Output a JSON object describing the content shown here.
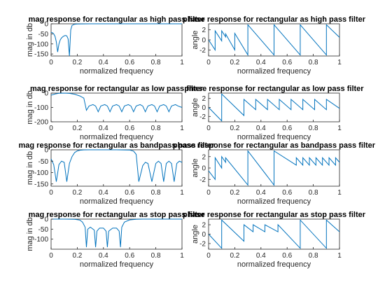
{
  "figure": {
    "background": "#ffffff",
    "line_color": "#0072BD"
  },
  "chart_data": [
    {
      "type": "line",
      "title": "mag response for rectangular as high pass filter",
      "xlabel": "normalized frequency",
      "ylabel": "mag in db",
      "xlim": [
        0,
        1
      ],
      "ylim": [
        -160,
        0
      ],
      "xticks": [
        0,
        0.2,
        0.4,
        0.6,
        0.8,
        1
      ],
      "yticks": [
        0,
        -50,
        -100,
        -150
      ],
      "series": [
        {
          "kind": "mag",
          "x": [
            0,
            0.01,
            0.02,
            0.03,
            0.04,
            0.05,
            0.06,
            0.07,
            0.08,
            0.09,
            0.1,
            0.11,
            0.12,
            0.13,
            0.14,
            0.15,
            0.16,
            0.18,
            0.2,
            0.25,
            0.3,
            0.35,
            0.4,
            0.5,
            0.6,
            0.7,
            0.8,
            0.9,
            1
          ],
          "values": [
            -42,
            -44,
            -50,
            -62,
            -90,
            -140,
            -100,
            -80,
            -70,
            -64,
            -60,
            -58,
            -60,
            -75,
            -160,
            -30,
            -8,
            -2,
            -1,
            -0.5,
            0,
            0,
            0,
            0,
            0,
            0,
            0,
            0,
            0
          ]
        }
      ]
    },
    {
      "type": "line",
      "title": "phase response for rectangular as high pass filter",
      "xlabel": "normalized frequency",
      "ylabel": "angle",
      "xlim": [
        0,
        1
      ],
      "ylim": [
        -3.2,
        3.2
      ],
      "xticks": [
        0,
        0.2,
        0.4,
        0.6,
        0.8,
        1
      ],
      "yticks": [
        2,
        0,
        -2
      ],
      "series": [
        {
          "kind": "phase",
          "x": [
            0,
            0.05,
            0.05,
            0.1,
            0.1,
            0.13,
            0.13,
            0.2,
            0.2,
            0.3,
            0.3,
            0.5,
            0.5,
            0.7,
            0.7,
            0.9,
            0.9,
            1
          ],
          "values": [
            0,
            -2,
            1.8,
            -0.2,
            1.8,
            0.6,
            1.2,
            -2,
            1.3,
            -3,
            3,
            -3,
            3,
            -3,
            3,
            -3,
            3,
            0.5
          ]
        }
      ]
    },
    {
      "type": "line",
      "title": "mag response for rectangular as low pass filter",
      "xlabel": "normalized frequency",
      "ylabel": "mag in db",
      "xlim": [
        0,
        1
      ],
      "ylim": [
        -200,
        0
      ],
      "xticks": [
        0,
        0.2,
        0.4,
        0.6,
        0.8,
        1
      ],
      "yticks": [
        0,
        -100,
        -200
      ],
      "series": [
        {
          "kind": "mag",
          "x": [
            0,
            0.03,
            0.06,
            0.1,
            0.14,
            0.18,
            0.22,
            0.25,
            0.27,
            0.29,
            0.32,
            0.34,
            0.36,
            0.38,
            0.41,
            0.43,
            0.45,
            0.47,
            0.5,
            0.52,
            0.54,
            0.56,
            0.59,
            0.61,
            0.63,
            0.65,
            0.68,
            0.7,
            0.72,
            0.74,
            0.77,
            0.79,
            0.81,
            0.83,
            0.86,
            0.88,
            0.9,
            0.92,
            0.95,
            0.97,
            1
          ],
          "values": [
            -15,
            -6,
            -1,
            0,
            -2,
            -8,
            -20,
            -35,
            -120,
            -90,
            -80,
            -90,
            -130,
            -90,
            -80,
            -90,
            -130,
            -90,
            -80,
            -90,
            -130,
            -90,
            -80,
            -90,
            -130,
            -90,
            -80,
            -90,
            -130,
            -90,
            -80,
            -90,
            -130,
            -90,
            -80,
            -90,
            -130,
            -90,
            -80,
            -90,
            -100
          ]
        }
      ]
    },
    {
      "type": "line",
      "title": "phase response for rectangular as low pass filter",
      "xlabel": "normalized frequency",
      "ylabel": "angle",
      "xlim": [
        0,
        1
      ],
      "ylim": [
        -3.2,
        3.2
      ],
      "xticks": [
        0,
        0.2,
        0.4,
        0.6,
        0.8,
        1
      ],
      "yticks": [
        2,
        0,
        -2
      ],
      "series": [
        {
          "kind": "phase",
          "x": [
            0,
            0.1,
            0.1,
            0.27,
            0.27,
            0.36,
            0.36,
            0.45,
            0.45,
            0.54,
            0.54,
            0.63,
            0.63,
            0.72,
            0.72,
            0.81,
            0.81,
            0.9,
            0.9,
            1
          ],
          "values": [
            0,
            -3,
            3,
            -1.8,
            1.8,
            -0.5,
            1.8,
            -0.5,
            1.8,
            -0.5,
            1.8,
            -0.5,
            1.8,
            -0.5,
            1.8,
            -0.5,
            1.8,
            -0.5,
            1.8,
            -0.2
          ]
        }
      ]
    },
    {
      "type": "line",
      "title": "mag response for rectangular as bandpass pass filter",
      "xlabel": "normalized frequency",
      "ylabel": "mag in db",
      "xlim": [
        0,
        1
      ],
      "ylim": [
        -160,
        0
      ],
      "xticks": [
        0,
        0.2,
        0.4,
        0.6,
        0.8,
        1
      ],
      "yticks": [
        0,
        -50,
        -100,
        -150
      ],
      "series": [
        {
          "kind": "mag",
          "x": [
            0,
            0.02,
            0.04,
            0.06,
            0.08,
            0.1,
            0.12,
            0.14,
            0.16,
            0.18,
            0.2,
            0.22,
            0.25,
            0.3,
            0.4,
            0.5,
            0.6,
            0.63,
            0.65,
            0.67,
            0.7,
            0.72,
            0.74,
            0.77,
            0.8,
            0.82,
            0.84,
            0.86,
            0.88,
            0.9,
            0.92,
            0.94,
            0.96,
            0.98,
            1
          ],
          "values": [
            -40,
            -65,
            -140,
            -65,
            -50,
            -55,
            -140,
            -60,
            -30,
            -12,
            -5,
            -2,
            -0.5,
            0,
            0,
            0,
            -1,
            -6,
            -20,
            -140,
            -70,
            -55,
            -60,
            -140,
            -60,
            -50,
            -60,
            -140,
            -60,
            -50,
            -60,
            -140,
            -60,
            -50,
            -55
          ]
        }
      ]
    },
    {
      "type": "line",
      "title": "phase response for rectangular as bandpass pass filter",
      "xlabel": "normalized frequency",
      "ylabel": "angle",
      "xlim": [
        0,
        1
      ],
      "ylim": [
        -3.2,
        3.2
      ],
      "xticks": [
        0,
        0.2,
        0.4,
        0.6,
        0.8,
        1
      ],
      "yticks": [
        2,
        0,
        -2
      ],
      "series": [
        {
          "kind": "phase",
          "x": [
            0,
            0.05,
            0.05,
            0.1,
            0.1,
            0.13,
            0.13,
            0.3,
            0.3,
            0.5,
            0.5,
            0.67,
            0.67,
            0.72,
            0.72,
            0.77,
            0.77,
            0.82,
            0.82,
            0.87,
            0.87,
            0.92,
            0.92,
            0.97,
            0.97,
            1
          ],
          "values": [
            -0.5,
            -2,
            1.8,
            0,
            2,
            1,
            1.8,
            -3,
            3,
            -3,
            3,
            0.5,
            1.8,
            0.5,
            1.8,
            0.5,
            1.8,
            0.5,
            1.8,
            0.5,
            1.8,
            0.5,
            1.8,
            0.5,
            1.8,
            1
          ]
        }
      ]
    },
    {
      "type": "line",
      "title": "mag response for rectangular as stop pass filter",
      "xlabel": "normalized frequency",
      "ylabel": "mag in db",
      "xlim": [
        0,
        1
      ],
      "ylim": [
        -150,
        0
      ],
      "xticks": [
        0,
        0.2,
        0.4,
        0.6,
        0.8,
        1
      ],
      "yticks": [
        0,
        -50,
        -100
      ],
      "series": [
        {
          "kind": "mag",
          "x": [
            0,
            0.1,
            0.18,
            0.22,
            0.24,
            0.26,
            0.27,
            0.28,
            0.3,
            0.33,
            0.34,
            0.35,
            0.37,
            0.4,
            0.42,
            0.43,
            0.44,
            0.47,
            0.5,
            0.52,
            0.53,
            0.54,
            0.56,
            0.6,
            0.65,
            0.7,
            0.8,
            0.9,
            1
          ],
          "values": [
            0,
            0,
            -1,
            -5,
            -15,
            -40,
            -140,
            -50,
            -40,
            -55,
            -140,
            -60,
            -45,
            -45,
            -60,
            -140,
            -60,
            -45,
            -45,
            -60,
            -140,
            -40,
            -15,
            -4,
            -1,
            0,
            0,
            0,
            0
          ]
        }
      ]
    },
    {
      "type": "line",
      "title": "phase response for rectangular as stop pass filter",
      "xlabel": "normalized frequency",
      "ylabel": "angle",
      "xlim": [
        0,
        1
      ],
      "ylim": [
        -3.2,
        3.2
      ],
      "xticks": [
        0,
        0.2,
        0.4,
        0.6,
        0.8,
        1
      ],
      "yticks": [
        2,
        0,
        -2
      ],
      "series": [
        {
          "kind": "phase",
          "x": [
            0,
            0.1,
            0.1,
            0.27,
            0.27,
            0.34,
            0.34,
            0.43,
            0.43,
            0.53,
            0.53,
            0.7,
            0.7,
            0.9,
            0.9,
            1
          ],
          "values": [
            0,
            -3,
            3,
            -1.5,
            2,
            0.5,
            2,
            0.5,
            2,
            0.5,
            2,
            -3,
            3,
            -3,
            3,
            0.5
          ]
        }
      ]
    }
  ]
}
